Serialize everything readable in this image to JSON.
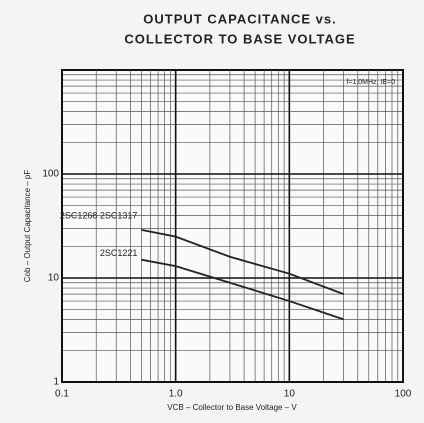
{
  "chart_data": {
    "type": "line",
    "title": "OUTPUT CAPACITANCE vs.",
    "subtitle": "COLLECTOR TO BASE VOLTAGE",
    "annotation": "f=1.0MHz, IE=0",
    "x_label": "VCB – Collector to Base Voltage – V",
    "y_label": "Cob – Output Capacitance – pF",
    "x": [
      0.5,
      1,
      3,
      10,
      30
    ],
    "series": [
      {
        "name": "2SC1268 2SC1317",
        "color": "#222222",
        "values": [
          29,
          25,
          16,
          11,
          7
        ]
      },
      {
        "name": "2SC1221",
        "color": "#222222",
        "values": [
          15,
          13,
          9,
          6,
          4
        ]
      }
    ],
    "xlim": [
      0.1,
      100
    ],
    "ylim": [
      1,
      1000
    ],
    "xticks": [
      0.1,
      {
        "value": 1,
        "label": "1.0"
      },
      10,
      100
    ],
    "yticks": [
      1,
      10,
      100
    ],
    "xscale": "log",
    "yscale": "log",
    "grid": true
  }
}
